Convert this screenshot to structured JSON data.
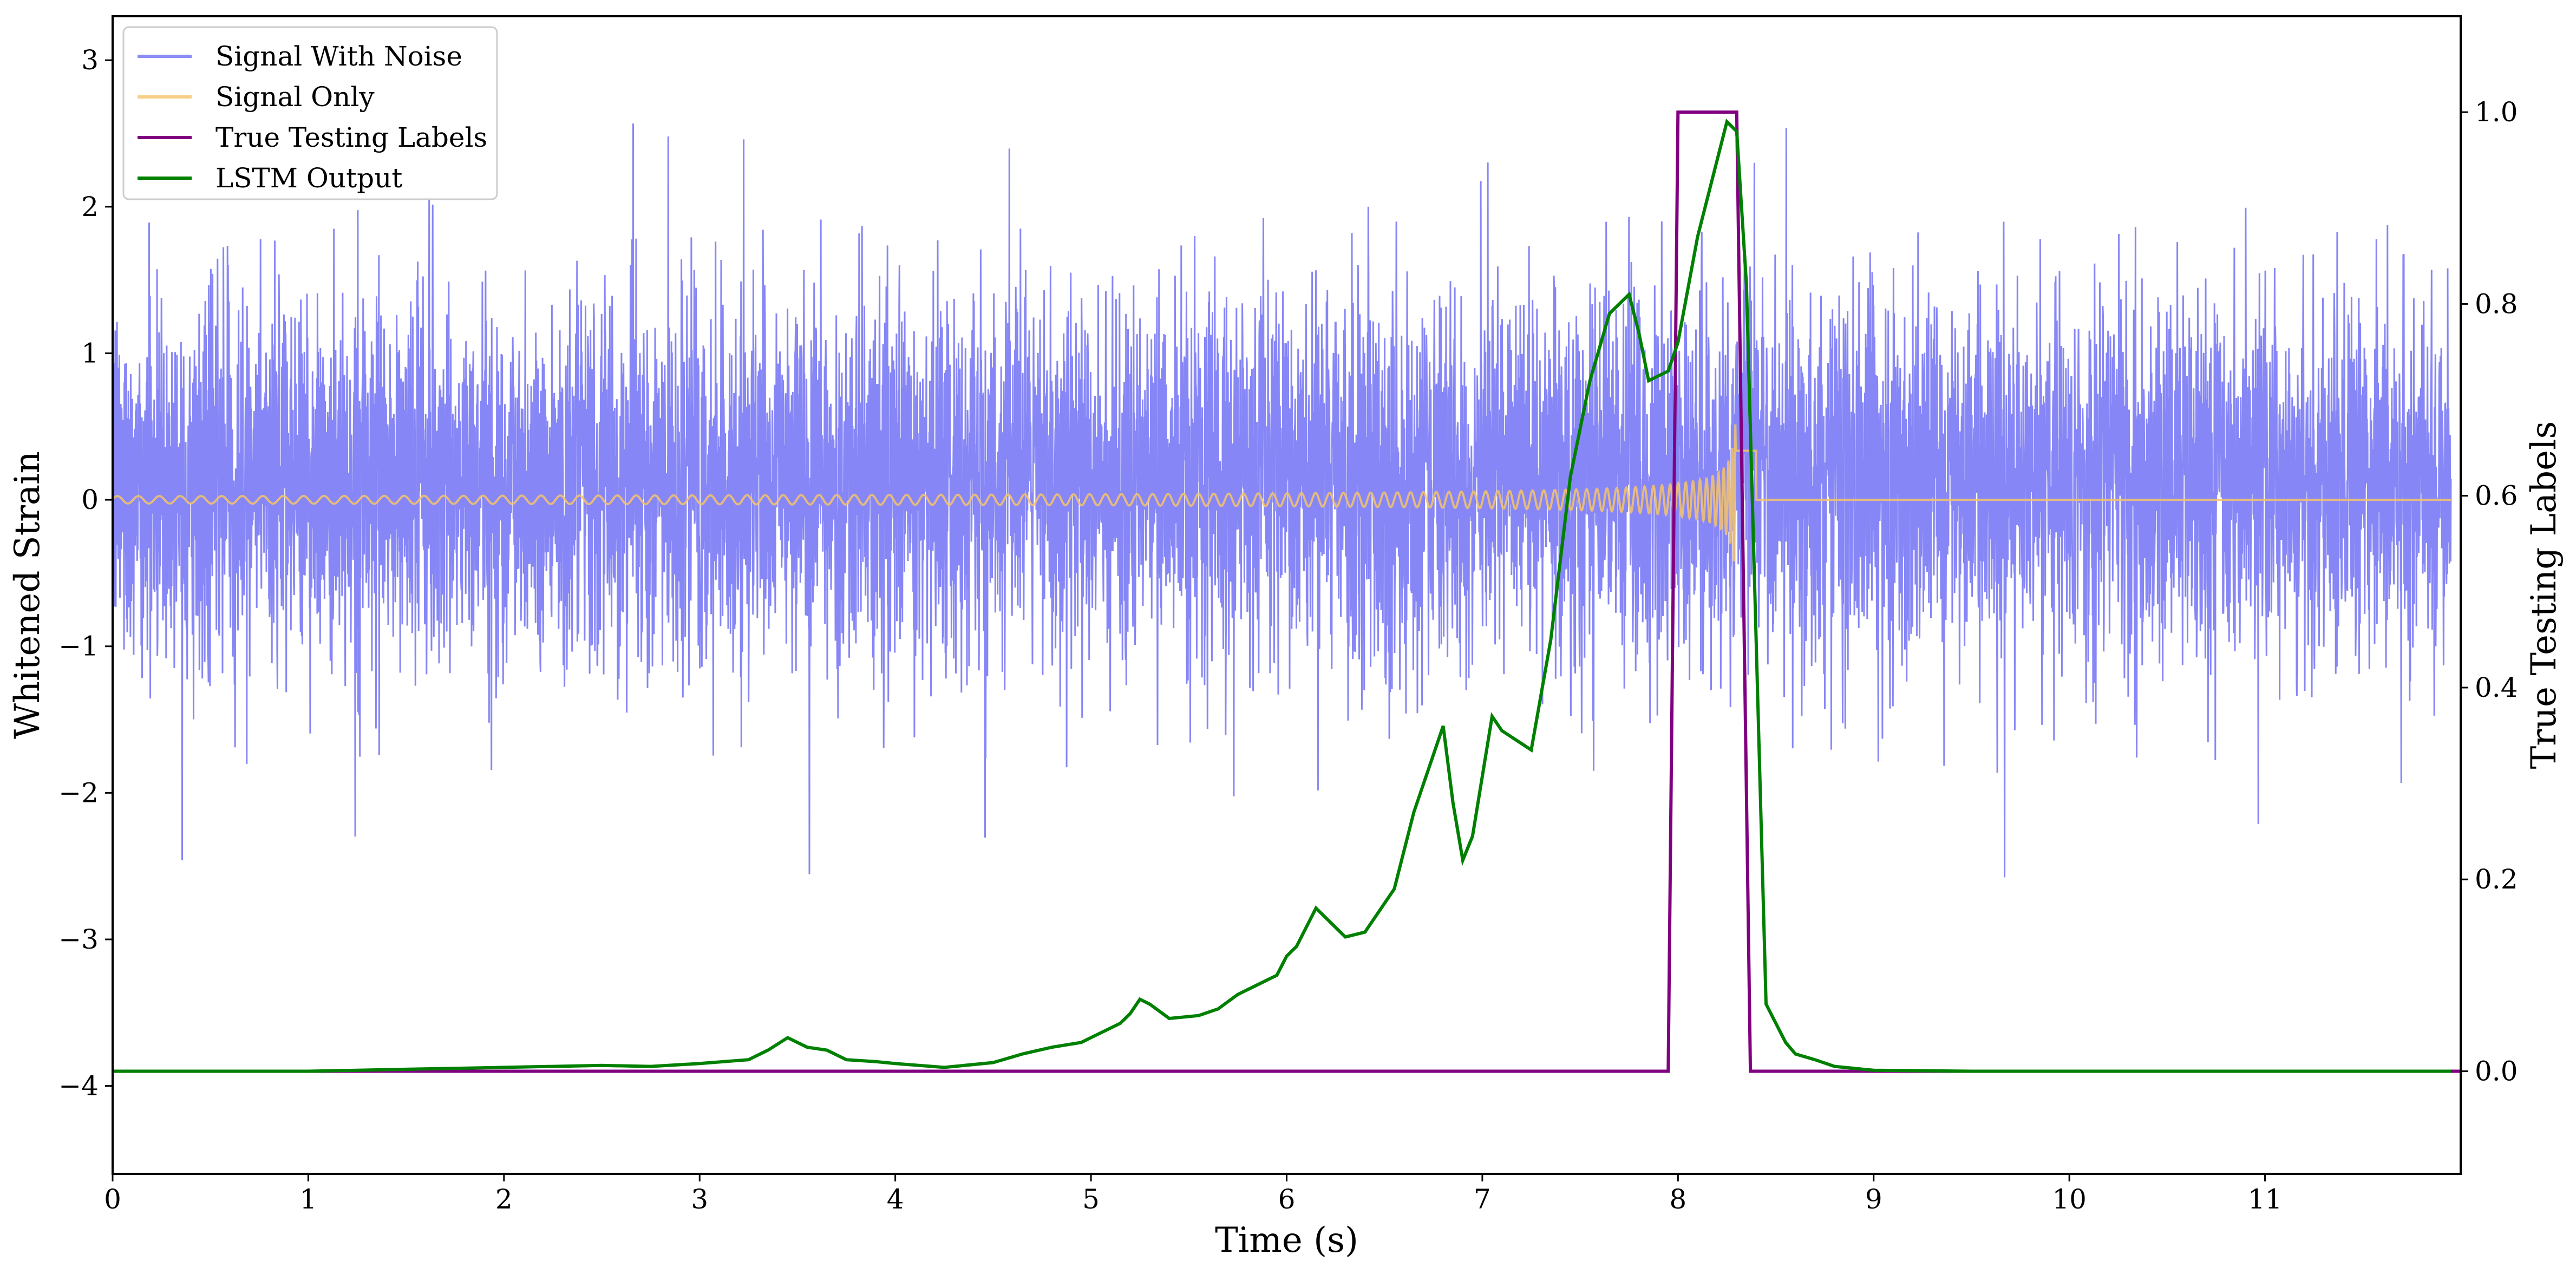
{
  "chart_data": {
    "type": "line",
    "xlabel": "Time (s)",
    "ylabel": "Whitened Strain",
    "y2label": "True Testing Labels",
    "xlim": [
      0,
      12
    ],
    "ylim": [
      -4.6,
      3.3
    ],
    "y2lim": [
      -0.107,
      1.1
    ],
    "xticks": [
      0,
      1,
      2,
      3,
      4,
      5,
      6,
      7,
      8,
      9,
      10,
      11
    ],
    "yticks": [
      -4,
      -3,
      -2,
      -1,
      0,
      1,
      2,
      3
    ],
    "y2ticks": [
      0.0,
      0.2,
      0.4,
      0.6,
      0.8,
      1.0
    ],
    "xtick_labels": [
      "0",
      "1",
      "2",
      "3",
      "4",
      "5",
      "6",
      "7",
      "8",
      "9",
      "10",
      "11"
    ],
    "ytick_labels": [
      "−4",
      "−3",
      "−2",
      "−1",
      "0",
      "1",
      "2",
      "3"
    ],
    "y2tick_labels": [
      "0.0",
      "0.2",
      "0.4",
      "0.6",
      "0.8",
      "1.0"
    ],
    "legend_position": "top-left",
    "grid": false,
    "series": [
      {
        "name": "Signal With Noise",
        "axis": "left",
        "color": "#7f7ff5",
        "noise_envelope": {
          "typical_min": -1.6,
          "typical_max": 2.0,
          "extreme_min": -3.1,
          "extreme_max": 2.95
        }
      },
      {
        "name": "Signal Only",
        "axis": "left",
        "color": "#f5c36b",
        "chirp": {
          "start": 0.0,
          "merger": 8.3,
          "end": 8.4,
          "amp_start": 0.025,
          "amp_peak": 1.3
        }
      },
      {
        "name": "True Testing Labels",
        "axis": "right",
        "color": "#800080",
        "x": [
          0,
          7.95,
          8.0,
          8.3,
          8.37,
          12
        ],
        "y": [
          0,
          0,
          1,
          1,
          0,
          0
        ]
      },
      {
        "name": "LSTM Output",
        "axis": "right",
        "color": "#008000",
        "x": [
          0,
          0.5,
          1.0,
          1.5,
          2.0,
          2.25,
          2.5,
          2.75,
          3.0,
          3.25,
          3.35,
          3.45,
          3.55,
          3.65,
          3.75,
          3.9,
          4.0,
          4.25,
          4.5,
          4.65,
          4.8,
          4.95,
          5.05,
          5.15,
          5.2,
          5.25,
          5.3,
          5.4,
          5.55,
          5.65,
          5.75,
          5.85,
          5.95,
          6.0,
          6.05,
          6.15,
          6.3,
          6.4,
          6.55,
          6.65,
          6.75,
          6.8,
          6.85,
          6.9,
          6.95,
          7.05,
          7.1,
          7.25,
          7.35,
          7.45,
          7.55,
          7.65,
          7.75,
          7.8,
          7.85,
          7.95,
          8.0,
          8.1,
          8.2,
          8.25,
          8.3,
          8.35,
          8.45,
          8.55,
          8.6,
          8.7,
          8.8,
          9.0,
          9.5,
          10,
          11,
          11.95
        ],
        "y": [
          0,
          0,
          0,
          0.002,
          0.004,
          0.005,
          0.006,
          0.005,
          0.008,
          0.012,
          0.022,
          0.035,
          0.025,
          0.022,
          0.012,
          0.01,
          0.008,
          0.004,
          0.009,
          0.018,
          0.025,
          0.03,
          0.04,
          0.05,
          0.06,
          0.075,
          0.07,
          0.055,
          0.058,
          0.065,
          0.08,
          0.09,
          0.1,
          0.12,
          0.13,
          0.17,
          0.14,
          0.145,
          0.19,
          0.27,
          0.33,
          0.36,
          0.28,
          0.22,
          0.245,
          0.37,
          0.355,
          0.335,
          0.45,
          0.62,
          0.72,
          0.79,
          0.81,
          0.77,
          0.72,
          0.73,
          0.76,
          0.87,
          0.95,
          0.99,
          0.98,
          0.82,
          0.07,
          0.03,
          0.018,
          0.012,
          0.005,
          0.001,
          0,
          0,
          0,
          0
        ]
      }
    ]
  }
}
